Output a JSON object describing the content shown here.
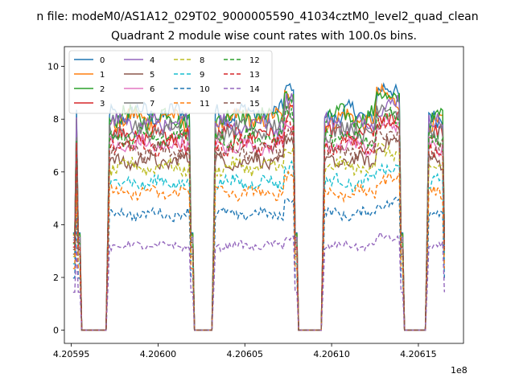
{
  "chart_data": {
    "type": "line",
    "suptitle": "n file: modeM0/AS1A12_029T02_9000005590_41034cztM0_level2_quad_clean",
    "title": "Quadrant 2 module wise count rates with 100.0s bins.",
    "xlabel": "",
    "ylabel": "",
    "x_offset_label": "1e8",
    "xlim": [
      420594.6,
      420617.6
    ],
    "ylim": [
      -0.5,
      10.75
    ],
    "x_units_note": "x values in units of 1e3 s (tick 4.20595 = 420595 x 1e3)",
    "xticks": [
      420595,
      420600,
      420605,
      420610,
      420615
    ],
    "xtick_labels": [
      "4.20595",
      "4.20600",
      "4.20605",
      "4.20610",
      "4.20615"
    ],
    "yticks": [
      0,
      2,
      4,
      6,
      8,
      10
    ],
    "ytick_labels": [
      "0",
      "2",
      "4",
      "6",
      "8",
      "10"
    ],
    "segments": [
      [
        420595.1,
        420595.5
      ],
      [
        420597.0,
        420602.0
      ],
      [
        420603.1,
        420608.0
      ],
      [
        420609.4,
        420614.1
      ],
      [
        420615.4,
        420616.6
      ]
    ],
    "legend_position": "upper-left",
    "series": [
      {
        "name": "0",
        "color": "#1f77b4",
        "dash": "solid",
        "level": 8.2
      },
      {
        "name": "1",
        "color": "#ff7f0e",
        "dash": "solid",
        "level": 8.0
      },
      {
        "name": "2",
        "color": "#2ca02c",
        "dash": "solid",
        "level": 8.1
      },
      {
        "name": "3",
        "color": "#d62728",
        "dash": "solid",
        "level": 7.4
      },
      {
        "name": "4",
        "color": "#9467bd",
        "dash": "solid",
        "level": 7.8
      },
      {
        "name": "5",
        "color": "#8c564b",
        "dash": "solid",
        "level": 6.4
      },
      {
        "name": "6",
        "color": "#e377c2",
        "dash": "solid",
        "level": 7.0
      },
      {
        "name": "7",
        "color": "#7f7f7f",
        "dash": "solid",
        "level": 7.6
      },
      {
        "name": "8",
        "color": "#bcbd22",
        "dash": "dashed",
        "level": 6.2
      },
      {
        "name": "9",
        "color": "#17becf",
        "dash": "dashed",
        "level": 5.6
      },
      {
        "name": "10",
        "color": "#1f77b4",
        "dash": "dashed",
        "level": 4.4
      },
      {
        "name": "11",
        "color": "#ff7f0e",
        "dash": "dashed",
        "level": 5.2
      },
      {
        "name": "12",
        "color": "#2ca02c",
        "dash": "dashed",
        "level": 7.3
      },
      {
        "name": "13",
        "color": "#d62728",
        "dash": "dashed",
        "level": 7.0
      },
      {
        "name": "14",
        "color": "#9467bd",
        "dash": "dashed",
        "level": 3.2
      },
      {
        "name": "15",
        "color": "#8c564b",
        "dash": "dashed",
        "level": 6.8
      }
    ]
  }
}
